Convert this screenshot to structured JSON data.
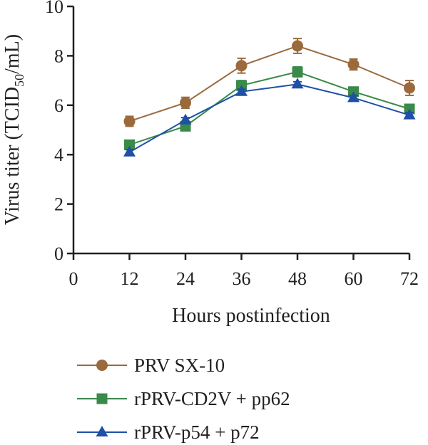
{
  "chart_data": {
    "type": "line",
    "xlabel": "Hours postinfection",
    "ylabel_main": "Virus titer (TCID",
    "ylabel_sub": "50",
    "ylabel_end": "/mL)",
    "xlim": [
      0,
      72
    ],
    "ylim": [
      0,
      10
    ],
    "x_ticks": [
      0,
      12,
      24,
      36,
      48,
      60,
      72
    ],
    "y_ticks": [
      0,
      2,
      4,
      6,
      8,
      10
    ],
    "grid": false,
    "legend_position": "bottom",
    "x": [
      12,
      24,
      36,
      48,
      60,
      72
    ],
    "series": [
      {
        "name": "PRV SX-10",
        "marker": "circle",
        "color": "#9b6a3c",
        "values": [
          5.35,
          6.1,
          7.6,
          8.4,
          7.65,
          6.7
        ],
        "errors": [
          0.2,
          0.22,
          0.3,
          0.3,
          0.22,
          0.3
        ]
      },
      {
        "name": "rPRV-CD2V + pp62",
        "marker": "square",
        "color": "#3a8a4a",
        "values": [
          4.4,
          5.15,
          6.8,
          7.35,
          6.55,
          5.85
        ],
        "errors": [
          0.15,
          0.15,
          0.2,
          0.2,
          0.15,
          0.15
        ]
      },
      {
        "name": "rPRV-p54 + p72",
        "marker": "triangle",
        "color": "#1f4fa6",
        "values": [
          4.1,
          5.4,
          6.55,
          6.85,
          6.3,
          5.6
        ],
        "errors": [
          0.1,
          0.1,
          0.1,
          0.1,
          0.1,
          0.1
        ]
      }
    ]
  }
}
